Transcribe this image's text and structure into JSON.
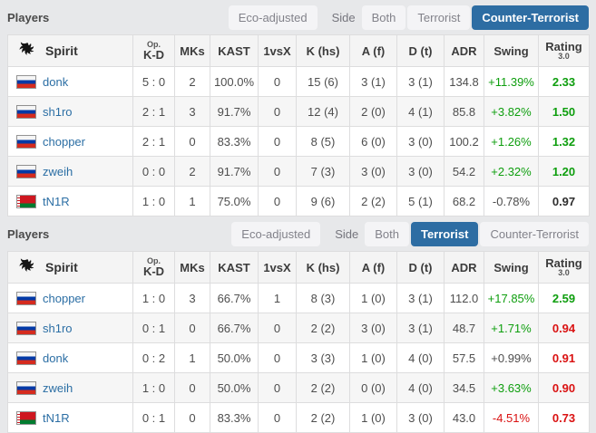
{
  "theme": {
    "accent_blue": "#2d6da3",
    "link_blue": "#2b6ea4",
    "positive_green": "#0e9e0e",
    "negative_red": "#da1212",
    "page_background": "#e7e8ea"
  },
  "sections": [
    {
      "bar": {
        "title": "Players",
        "eco_button": "Eco-adjusted",
        "side_label": "Side",
        "side_options": [
          "Both",
          "Terrorist",
          "Counter-Terrorist"
        ],
        "side_selected": "Counter-Terrorist"
      },
      "table": {
        "team": "Spirit",
        "team_logo": "spirit-dragon",
        "columns": [
          {
            "sup": "Op.",
            "label": "K-D"
          },
          {
            "label": "MKs"
          },
          {
            "label": "KAST"
          },
          {
            "label": "1vsX"
          },
          {
            "label": "K (hs)"
          },
          {
            "label": "A (f)"
          },
          {
            "label": "D (t)"
          },
          {
            "label": "ADR"
          },
          {
            "label": "Swing"
          },
          {
            "label": "Rating",
            "sub": "3.0"
          }
        ],
        "rows": [
          {
            "player": "donk",
            "country": "ru",
            "cells": [
              "5 : 0",
              "2",
              "100.0%",
              "0",
              "15 (6)",
              "3 (1)",
              "3 (1)",
              "134.8"
            ],
            "swing": "+11.39%",
            "swing_tone": "positive",
            "rating": "2.33",
            "rating_tone": "positive"
          },
          {
            "player": "sh1ro",
            "country": "ru",
            "cells": [
              "2 : 1",
              "3",
              "91.7%",
              "0",
              "12 (4)",
              "2 (0)",
              "4 (1)",
              "85.8"
            ],
            "swing": "+3.82%",
            "swing_tone": "positive",
            "rating": "1.50",
            "rating_tone": "positive"
          },
          {
            "player": "chopper",
            "country": "ru",
            "cells": [
              "2 : 1",
              "0",
              "83.3%",
              "0",
              "8 (5)",
              "6 (0)",
              "3 (0)",
              "100.2"
            ],
            "swing": "+1.26%",
            "swing_tone": "positive",
            "rating": "1.32",
            "rating_tone": "positive"
          },
          {
            "player": "zweih",
            "country": "ru",
            "cells": [
              "0 : 0",
              "2",
              "91.7%",
              "0",
              "7 (3)",
              "3 (0)",
              "3 (0)",
              "54.2"
            ],
            "swing": "+2.32%",
            "swing_tone": "positive",
            "rating": "1.20",
            "rating_tone": "positive"
          },
          {
            "player": "tN1R",
            "country": "by",
            "cells": [
              "1 : 0",
              "1",
              "75.0%",
              "0",
              "9 (6)",
              "2 (2)",
              "5 (1)",
              "68.2"
            ],
            "swing": "-0.78%",
            "swing_tone": "neutral",
            "rating": "0.97",
            "rating_tone": "neutral"
          }
        ]
      }
    },
    {
      "bar": {
        "title": "Players",
        "eco_button": "Eco-adjusted",
        "side_label": "Side",
        "side_options": [
          "Both",
          "Terrorist",
          "Counter-Terrorist"
        ],
        "side_selected": "Terrorist"
      },
      "table": {
        "team": "Spirit",
        "team_logo": "spirit-dragon",
        "columns": [
          {
            "sup": "Op.",
            "label": "K-D"
          },
          {
            "label": "MKs"
          },
          {
            "label": "KAST"
          },
          {
            "label": "1vsX"
          },
          {
            "label": "K (hs)"
          },
          {
            "label": "A (f)"
          },
          {
            "label": "D (t)"
          },
          {
            "label": "ADR"
          },
          {
            "label": "Swing"
          },
          {
            "label": "Rating",
            "sub": "3.0"
          }
        ],
        "rows": [
          {
            "player": "chopper",
            "country": "ru",
            "cells": [
              "1 : 0",
              "3",
              "66.7%",
              "1",
              "8 (3)",
              "1 (0)",
              "3 (1)",
              "112.0"
            ],
            "swing": "+17.85%",
            "swing_tone": "positive",
            "rating": "2.59",
            "rating_tone": "positive"
          },
          {
            "player": "sh1ro",
            "country": "ru",
            "cells": [
              "0 : 1",
              "0",
              "66.7%",
              "0",
              "2 (2)",
              "3 (0)",
              "3 (1)",
              "48.7"
            ],
            "swing": "+1.71%",
            "swing_tone": "positive",
            "rating": "0.94",
            "rating_tone": "negative"
          },
          {
            "player": "donk",
            "country": "ru",
            "cells": [
              "0 : 2",
              "1",
              "50.0%",
              "0",
              "3 (3)",
              "1 (0)",
              "4 (0)",
              "57.5"
            ],
            "swing": "+0.99%",
            "swing_tone": "neutral",
            "rating": "0.91",
            "rating_tone": "negative"
          },
          {
            "player": "zweih",
            "country": "ru",
            "cells": [
              "1 : 0",
              "0",
              "50.0%",
              "0",
              "2 (2)",
              "0 (0)",
              "4 (0)",
              "34.5"
            ],
            "swing": "+3.63%",
            "swing_tone": "positive",
            "rating": "0.90",
            "rating_tone": "negative"
          },
          {
            "player": "tN1R",
            "country": "by",
            "cells": [
              "0 : 1",
              "0",
              "83.3%",
              "0",
              "2 (2)",
              "1 (0)",
              "3 (0)",
              "43.0"
            ],
            "swing": "-4.51%",
            "swing_tone": "negative",
            "rating": "0.73",
            "rating_tone": "negative"
          }
        ]
      }
    }
  ]
}
